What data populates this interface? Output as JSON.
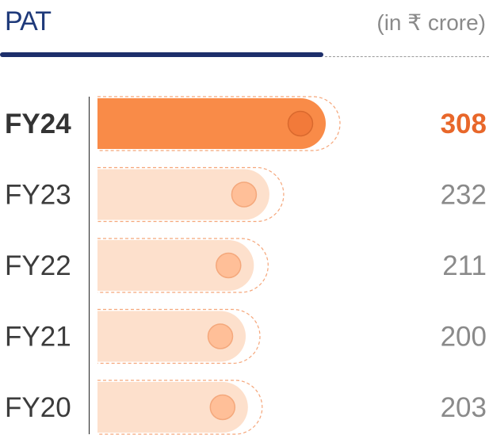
{
  "chart_data": {
    "type": "bar",
    "orientation": "horizontal",
    "title": "PAT",
    "unit_label": "(in ₹ crore)",
    "categories": [
      "FY24",
      "FY23",
      "FY22",
      "FY21",
      "FY20"
    ],
    "values": [
      308,
      232,
      211,
      200,
      203
    ],
    "highlight_index": 0,
    "colors": {
      "highlight_bar": "#f98b48",
      "highlight_knob": "#f27a3a",
      "bar": "#fde0cc",
      "knob": "#ffbf98",
      "dash": "#f5a67a"
    }
  }
}
